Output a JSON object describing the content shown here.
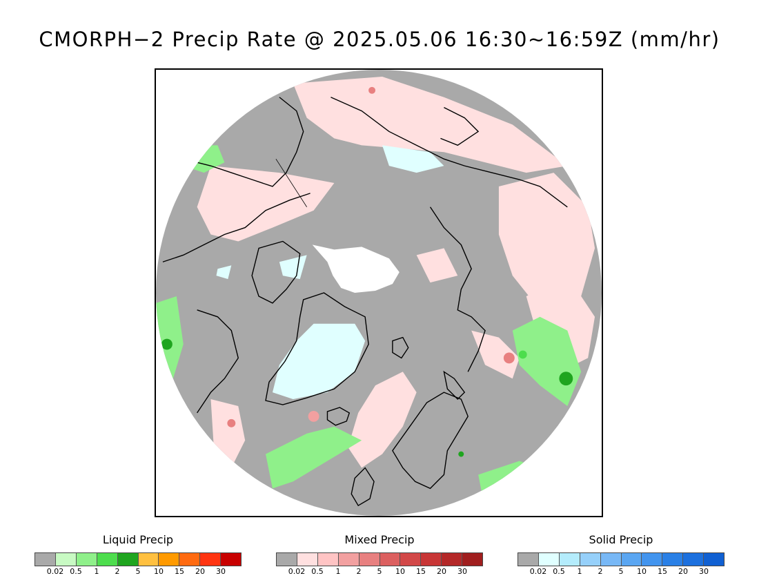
{
  "title": "CMORPH−2 Precip Rate @ 2025.05.06 16:30~16:59Z (mm/hr)",
  "map": {
    "projection": "north polar stereographic",
    "colors": {
      "ocean_land_no_precip": "#a9a9a9",
      "no_data": "#ffffff",
      "coastline": "#000000"
    }
  },
  "legends": [
    {
      "title": "Liquid Precip",
      "colors": [
        "#a9a9a9",
        "#c8fac3",
        "#8ff08a",
        "#4ddd4d",
        "#1fa51f",
        "#ffc040",
        "#ff9a00",
        "#ff6a10",
        "#ff3410",
        "#c80000"
      ],
      "ticks": [
        "0.02",
        "0.5",
        "1",
        "2",
        "5",
        "10",
        "15",
        "20",
        "30"
      ]
    },
    {
      "title": "Mixed Precip",
      "colors": [
        "#a9a9a9",
        "#ffe0e0",
        "#ffc4c4",
        "#f2a0a0",
        "#e88080",
        "#dc6060",
        "#d24848",
        "#c83636",
        "#b42828",
        "#a01e1e"
      ],
      "ticks": [
        "0.02",
        "0.5",
        "1",
        "2",
        "5",
        "10",
        "15",
        "20",
        "30"
      ]
    },
    {
      "title": "Solid Precip",
      "colors": [
        "#a9a9a9",
        "#e0ffff",
        "#b4ecfc",
        "#96d0fa",
        "#78b8f6",
        "#5aa6f2",
        "#4294ee",
        "#2a80e6",
        "#1c70de",
        "#1060d2"
      ],
      "ticks": [
        "0.02",
        "0.5",
        "1",
        "2",
        "5",
        "10",
        "15",
        "20",
        "30"
      ]
    }
  ]
}
